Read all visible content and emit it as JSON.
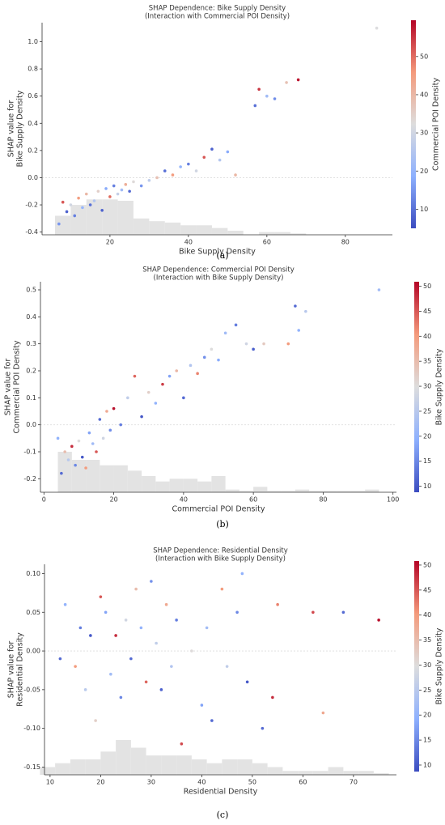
{
  "chart_data": [
    {
      "type": "scatter",
      "title": [
        "SHAP Dependence: Bike Supply Density",
        "(Interaction with Commercial POI Density)"
      ],
      "xlabel": "Bike Supply Density",
      "ylabel": [
        "SHAP value for",
        "Bike Supply Density"
      ],
      "caption": "(a)",
      "x": [
        7,
        8,
        9,
        10,
        11,
        12,
        13,
        14,
        15,
        16,
        17,
        18,
        19,
        20,
        21,
        22,
        23,
        24,
        25,
        26,
        28,
        30,
        32,
        34,
        36,
        38,
        40,
        42,
        44,
        46,
        48,
        50,
        52,
        57,
        58,
        60,
        62,
        65,
        68,
        88
      ],
      "values": [
        -0.34,
        -0.18,
        -0.25,
        -0.2,
        -0.28,
        -0.15,
        -0.22,
        -0.12,
        -0.2,
        -0.17,
        -0.1,
        -0.24,
        -0.08,
        -0.14,
        -0.06,
        -0.12,
        -0.09,
        -0.05,
        -0.1,
        -0.03,
        -0.06,
        -0.02,
        0.0,
        0.05,
        0.02,
        0.08,
        0.1,
        0.05,
        0.15,
        0.21,
        0.13,
        0.19,
        0.02,
        0.53,
        0.65,
        0.6,
        0.58,
        0.7,
        0.72,
        1.1
      ],
      "color_values": [
        15,
        52,
        8,
        30,
        12,
        45,
        20,
        40,
        10,
        25,
        35,
        8,
        18,
        50,
        12,
        28,
        22,
        42,
        9,
        33,
        15,
        27,
        38,
        10,
        45,
        20,
        12,
        30,
        52,
        8,
        25,
        18,
        40,
        10,
        55,
        22,
        14,
        38,
        58,
        32
      ],
      "histogram": {
        "bins": [
          6,
          10,
          14,
          18,
          22,
          26,
          30,
          34,
          38,
          42,
          46,
          50,
          54,
          58,
          62,
          66,
          70
        ],
        "tops": [
          -0.28,
          -0.2,
          -0.16,
          -0.16,
          -0.17,
          -0.3,
          -0.32,
          -0.33,
          -0.35,
          -0.35,
          -0.37,
          -0.39,
          -0.42,
          -0.4,
          -0.4,
          -0.41
        ]
      },
      "xlim": [
        2.7,
        92
      ],
      "xticks": [
        20,
        40,
        60,
        80
      ],
      "ylim": [
        -0.42,
        1.14
      ],
      "yticks": [
        -0.4,
        -0.2,
        {
          "value": 0,
          "label": "0.0"
        },
        0.2,
        0.4,
        0.6,
        0.8,
        {
          "value": 1,
          "label": "1.0"
        }
      ],
      "zero_line": true,
      "colormap": "coolwarm",
      "colorbar": {
        "label": "Commercial POI Density",
        "lim": [
          5,
          59.5
        ],
        "ticks": [
          10,
          20,
          30,
          40,
          50
        ]
      }
    },
    {
      "type": "scatter",
      "title": [
        "SHAP Dependence: Commercial POI Density",
        "(Interaction with Bike Supply Density)"
      ],
      "xlabel": "Commercial POI Density",
      "ylabel": [
        "SHAP value for",
        "Commercial POI Density"
      ],
      "caption": "(b)",
      "x": [
        4,
        5,
        6,
        7,
        8,
        9,
        10,
        11,
        12,
        13,
        14,
        15,
        16,
        17,
        18,
        19,
        20,
        22,
        24,
        26,
        28,
        30,
        32,
        34,
        36,
        38,
        40,
        42,
        44,
        46,
        48,
        50,
        52,
        55,
        58,
        60,
        63,
        70,
        72,
        73,
        75,
        96
      ],
      "values": [
        -0.05,
        -0.18,
        -0.1,
        -0.13,
        -0.08,
        -0.15,
        -0.06,
        -0.12,
        -0.16,
        -0.03,
        -0.07,
        -0.1,
        0.02,
        -0.05,
        0.05,
        -0.02,
        0.06,
        0.0,
        0.1,
        0.18,
        0.03,
        0.12,
        0.08,
        0.15,
        0.18,
        0.2,
        0.1,
        0.22,
        0.19,
        0.25,
        0.28,
        0.24,
        0.34,
        0.37,
        0.3,
        0.28,
        0.3,
        0.3,
        0.44,
        0.35,
        0.42,
        0.5
      ],
      "color_values": [
        20,
        12,
        35,
        25,
        48,
        15,
        30,
        10,
        40,
        18,
        22,
        45,
        12,
        28,
        38,
        16,
        50,
        14,
        26,
        44,
        10,
        32,
        20,
        47,
        18,
        36,
        12,
        24,
        42,
        16,
        30,
        19,
        22,
        14,
        28,
        11,
        33,
        40,
        12,
        20,
        25,
        22
      ],
      "histogram": {
        "bins": [
          4,
          8,
          12,
          16,
          20,
          24,
          28,
          32,
          36,
          40,
          44,
          48,
          52,
          56,
          60,
          64,
          68,
          72,
          76,
          80,
          84,
          88,
          92,
          96
        ],
        "tops": [
          -0.1,
          -0.13,
          -0.13,
          -0.15,
          -0.15,
          -0.17,
          -0.19,
          -0.21,
          -0.2,
          -0.2,
          -0.21,
          -0.19,
          -0.24,
          -0.245,
          -0.23,
          -0.245,
          -0.245,
          -0.24,
          -0.245,
          -0.245,
          -0.245,
          -0.245,
          -0.24
        ]
      },
      "xlim": [
        -1,
        101
      ],
      "xticks": [
        0,
        20,
        40,
        60,
        80,
        100
      ],
      "ylim": [
        -0.25,
        0.53
      ],
      "yticks": [
        -0.2,
        -0.1,
        {
          "value": 0,
          "label": "0.0"
        },
        0.1,
        0.2,
        0.3,
        0.4,
        0.5
      ],
      "zero_line": true,
      "colormap": "coolwarm",
      "colorbar": {
        "label": "Bike Supply Density",
        "lim": [
          8.8,
          50.9
        ],
        "ticks": [
          10,
          15,
          20,
          25,
          30,
          35,
          40,
          45,
          50
        ]
      }
    },
    {
      "type": "scatter",
      "title": [
        "SHAP Dependence: Residential Density",
        "(Interaction with Bike Supply Density)"
      ],
      "xlabel": "Residential Density",
      "ylabel": [
        "SHAP value for",
        "Residential Density"
      ],
      "caption": "(c)",
      "x": [
        12,
        13,
        15,
        16,
        17,
        18,
        19,
        20,
        21,
        22,
        23,
        24,
        25,
        26,
        27,
        28,
        29,
        30,
        31,
        32,
        33,
        34,
        35,
        36,
        38,
        40,
        41,
        42,
        44,
        45,
        47,
        48,
        49,
        52,
        54,
        55,
        62,
        64,
        68,
        75
      ],
      "values": [
        -0.01,
        0.06,
        -0.02,
        0.03,
        -0.05,
        0.02,
        -0.09,
        0.07,
        0.05,
        -0.03,
        0.02,
        -0.06,
        0.04,
        -0.01,
        0.08,
        0.03,
        -0.04,
        0.09,
        0.01,
        -0.05,
        0.06,
        -0.02,
        0.04,
        -0.12,
        0.0,
        -0.07,
        0.03,
        -0.09,
        0.08,
        -0.02,
        0.05,
        0.1,
        -0.04,
        -0.1,
        -0.06,
        0.06,
        0.05,
        -0.08,
        0.05,
        0.04
      ],
      "color_values": [
        12,
        20,
        40,
        14,
        25,
        10,
        32,
        45,
        18,
        22,
        48,
        15,
        28,
        12,
        35,
        20,
        44,
        16,
        26,
        11,
        38,
        24,
        14,
        46,
        30,
        18,
        22,
        12,
        40,
        26,
        15,
        20,
        10,
        12,
        48,
        42,
        46,
        38,
        12,
        50
      ],
      "histogram": {
        "bins": [
          8,
          11,
          14,
          17,
          20,
          23,
          26,
          29,
          32,
          35,
          38,
          41,
          44,
          47,
          50,
          53,
          56,
          59,
          62,
          65,
          68,
          71,
          74,
          77
        ],
        "tops": [
          -0.15,
          -0.145,
          -0.14,
          -0.14,
          -0.13,
          -0.115,
          -0.125,
          -0.135,
          -0.135,
          -0.135,
          -0.14,
          -0.145,
          -0.14,
          -0.14,
          -0.145,
          -0.15,
          -0.155,
          -0.155,
          -0.155,
          -0.15,
          -0.155,
          -0.155,
          -0.158
        ]
      },
      "xlim": [
        8.9,
        78.5
      ],
      "xticks": [
        10,
        20,
        30,
        40,
        50,
        60,
        70
      ],
      "ylim": [
        -0.16,
        0.112
      ],
      "yticks": [
        -0.15,
        {
          "value": -0.1,
          "label": "-0.10"
        },
        -0.05,
        {
          "value": 0,
          "label": "0.00"
        },
        0.05,
        {
          "value": 0.1,
          "label": "0.10"
        }
      ],
      "zero_line": true,
      "colormap": "coolwarm",
      "colorbar": {
        "label": "Bike Supply Density",
        "lim": [
          8.7,
          50.8
        ],
        "ticks": [
          10,
          15,
          20,
          25,
          30,
          35,
          40,
          45,
          50
        ]
      }
    }
  ]
}
